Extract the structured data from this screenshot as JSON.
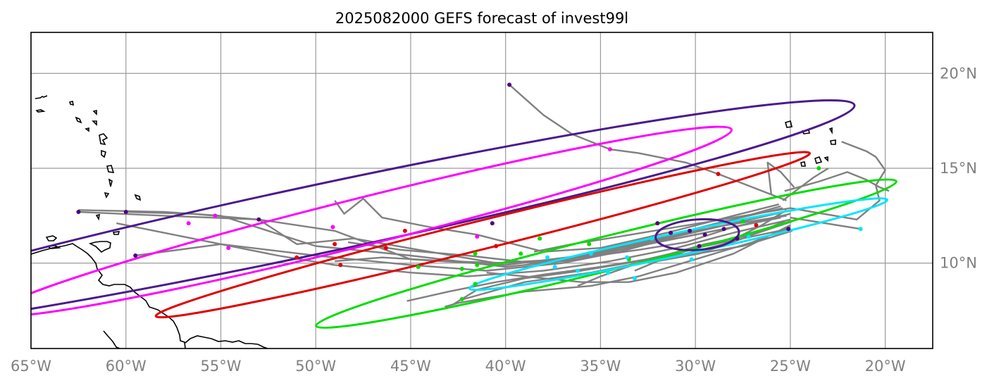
{
  "chart_data": {
    "type": "map",
    "title": "2025082000 GEFS forecast of invest99l",
    "projection": "PlateCarree",
    "lon_range": [
      -65,
      -17.5
    ],
    "lat_range": [
      5.5,
      22
    ],
    "xticks": [
      -65,
      -60,
      -55,
      -50,
      -45,
      -40,
      -35,
      -30,
      -25,
      -20
    ],
    "xtick_labels": [
      "65°W",
      "60°W",
      "55°W",
      "50°W",
      "45°W",
      "40°W",
      "35°W",
      "30°W",
      "25°W",
      "20°W"
    ],
    "yticks": [
      10,
      15,
      20
    ],
    "ytick_labels": [
      "10°N",
      "15°N",
      "20°N"
    ],
    "grid": true,
    "track_color": "#808080",
    "ensemble_tracks": [
      [
        [
          -25.5,
          13.0
        ],
        [
          -28,
          12.3
        ],
        [
          -32,
          11.2
        ],
        [
          -36,
          10.2
        ],
        [
          -40,
          9.8
        ],
        [
          -45,
          10.4
        ],
        [
          -50,
          10.9
        ],
        [
          -55,
          12.5
        ],
        [
          -58,
          12.7
        ],
        [
          -62.5,
          12.8
        ]
      ],
      [
        [
          -25.3,
          12.7
        ],
        [
          -28,
          12.1
        ],
        [
          -31,
          11.4
        ],
        [
          -34,
          10.6
        ],
        [
          -37,
          10.0
        ],
        [
          -41,
          9.6
        ],
        [
          -45,
          9.9
        ],
        [
          -50,
          10.4
        ],
        [
          -55,
          11.0
        ],
        [
          -59.5,
          10.4
        ]
      ],
      [
        [
          -25.4,
          12.9
        ],
        [
          -28.5,
          12.2
        ],
        [
          -32,
          11.3
        ],
        [
          -36,
          10.4
        ],
        [
          -40,
          9.9
        ],
        [
          -45,
          10.2
        ],
        [
          -49,
          11.7
        ],
        [
          -53,
          12.3
        ],
        [
          -56.5,
          12.6
        ],
        [
          -60,
          12.7
        ]
      ],
      [
        [
          -25.2,
          12.5
        ],
        [
          -29,
          11.9
        ],
        [
          -33,
          11.0
        ],
        [
          -37,
          10.2
        ],
        [
          -40.5,
          10.0
        ],
        [
          -44,
          10.6
        ],
        [
          -48,
          11.3
        ],
        [
          -51,
          11.0
        ],
        [
          -53,
          12.3
        ],
        [
          -58,
          12.5
        ],
        [
          -62.5,
          12.7
        ]
      ],
      [
        [
          -25.6,
          13.1
        ],
        [
          -28,
          12.5
        ],
        [
          -31.5,
          11.6
        ],
        [
          -35,
          10.8
        ],
        [
          -38,
          10.6
        ],
        [
          -41.5,
          11.5
        ],
        [
          -44,
          11.9
        ],
        [
          -46.5,
          12.4
        ],
        [
          -47.5,
          13.4
        ],
        [
          -48.5,
          12.6
        ],
        [
          -49,
          13.3
        ]
      ],
      [
        [
          -25.5,
          12.4
        ],
        [
          -29,
          11.7
        ],
        [
          -32.5,
          11.0
        ],
        [
          -36,
          10.3
        ],
        [
          -38.5,
          10.0
        ],
        [
          -42,
          10.4
        ],
        [
          -45.5,
          10.7
        ],
        [
          -48.3,
          11.1
        ]
      ],
      [
        [
          -25,
          12.3
        ],
        [
          -28,
          11.6
        ],
        [
          -31,
          10.8
        ],
        [
          -34.5,
          10.1
        ],
        [
          -38,
          9.6
        ],
        [
          -42,
          9.3
        ],
        [
          -45,
          9.5
        ],
        [
          -49,
          9.9
        ],
        [
          -52,
          10.4
        ],
        [
          -55,
          11.0
        ],
        [
          -58,
          11.6
        ],
        [
          -60.5,
          12.1
        ]
      ],
      [
        [
          -25,
          12.6
        ],
        [
          -27.5,
          12.0
        ],
        [
          -30,
          11.5
        ],
        [
          -33.5,
          10.8
        ],
        [
          -37,
          10.2
        ],
        [
          -40,
          10.0
        ],
        [
          -43,
          10.1
        ],
        [
          -46.5,
          10.3
        ],
        [
          -49,
          10.1
        ]
      ],
      [
        [
          -24.9,
          12.2
        ],
        [
          -27,
          11.5
        ],
        [
          -29.5,
          11.0
        ],
        [
          -32,
          10.3
        ],
        [
          -35,
          9.8
        ],
        [
          -38,
          9.4
        ],
        [
          -40.5,
          9.0
        ],
        [
          -43,
          8.5
        ],
        [
          -45.2,
          8.0
        ]
      ],
      [
        [
          -25.1,
          11.8
        ],
        [
          -27.5,
          11.3
        ],
        [
          -30,
          10.8
        ],
        [
          -33,
          10.1
        ],
        [
          -36,
          9.6
        ],
        [
          -39,
          9.2
        ],
        [
          -41.5,
          8.6
        ],
        [
          -42.8,
          7.8
        ]
      ],
      [
        [
          -25.2,
          12.1
        ],
        [
          -28.5,
          11.2
        ],
        [
          -32,
          10.2
        ],
        [
          -35.5,
          9.5
        ],
        [
          -39,
          9.0
        ],
        [
          -42.2,
          8.1
        ]
      ],
      [
        [
          -25.0,
          11.9
        ],
        [
          -27,
          11.1
        ],
        [
          -30,
          10.2
        ],
        [
          -33,
          9.3
        ],
        [
          -35.5,
          8.8
        ],
        [
          -39,
          8.5
        ],
        [
          -42.5,
          7.9
        ],
        [
          -43.2,
          7.7
        ]
      ],
      [
        [
          -25,
          12.0
        ],
        [
          -28,
          10.5
        ],
        [
          -31,
          9.5
        ],
        [
          -33.5,
          9.0
        ],
        [
          -36,
          9.0
        ],
        [
          -39,
          9.3
        ],
        [
          -41,
          9.5
        ]
      ],
      [
        [
          -24.9,
          11.7
        ],
        [
          -27.5,
          10.9
        ],
        [
          -30.5,
          10.4
        ],
        [
          -33,
          10.0
        ],
        [
          -35,
          9.3
        ],
        [
          -36.2,
          8.8
        ]
      ],
      [
        [
          -25.2,
          12.8
        ],
        [
          -26.5,
          12.0
        ],
        [
          -28.5,
          11.0
        ],
        [
          -30.5,
          10.5
        ],
        [
          -32.5,
          10.2
        ],
        [
          -34.8,
          9.8
        ]
      ],
      [
        [
          -25.3,
          12.2
        ],
        [
          -27.5,
          11.3
        ],
        [
          -29.8,
          10.5
        ],
        [
          -32,
          10.1
        ],
        [
          -33.2,
          9.6
        ]
      ],
      [
        [
          -25.5,
          12.5
        ],
        [
          -28,
          11.9
        ],
        [
          -30.5,
          11.1
        ],
        [
          -33,
          10.7
        ],
        [
          -35.2,
          10.4
        ],
        [
          -37.5,
          10.1
        ]
      ],
      [
        [
          -25,
          12.9
        ],
        [
          -28,
          12.4
        ],
        [
          -31,
          11.9
        ],
        [
          -34,
          11.4
        ],
        [
          -36.5,
          11.0
        ],
        [
          -38.5,
          10.6
        ]
      ],
      [
        [
          -25,
          12.4
        ],
        [
          -21.3,
          11.8
        ]
      ],
      [
        [
          -25.3,
          13.8
        ],
        [
          -23.5,
          14.3
        ],
        [
          -22,
          14.8
        ],
        [
          -21,
          14.4
        ],
        [
          -20.3,
          14.0
        ],
        [
          -19.8,
          13.8
        ]
      ],
      [
        [
          -25.4,
          13.3
        ],
        [
          -23.8,
          14.5
        ],
        [
          -23,
          15.0
        ]
      ],
      [
        [
          -25.0,
          12.9
        ],
        [
          -21.5,
          12.3
        ],
        [
          -20.3,
          13.3
        ],
        [
          -20.5,
          14.1
        ],
        [
          -20,
          14.9
        ],
        [
          -20.5,
          15.6
        ],
        [
          -21,
          15.9
        ],
        [
          -22.3,
          16.4
        ]
      ],
      [
        [
          -24.8,
          14.0
        ],
        [
          -25.5,
          14.8
        ],
        [
          -26.2,
          15.3
        ],
        [
          -26,
          13.6
        ]
      ],
      [
        [
          -25.2,
          13.3
        ],
        [
          -27,
          14.0
        ],
        [
          -28.8,
          14.7
        ],
        [
          -30.5,
          15.3
        ],
        [
          -33,
          15.8
        ],
        [
          -34.5,
          16.0
        ],
        [
          -36.5,
          16.8
        ],
        [
          -38,
          17.8
        ],
        [
          -39.8,
          19.4
        ]
      ]
    ],
    "track_markers": [
      {
        "color": "#e00000",
        "points": [
          [
            -28.8,
            14.7
          ],
          [
            -45.3,
            11.7
          ],
          [
            -46.3,
            10.8
          ],
          [
            -51,
            10.3
          ],
          [
            -48.7,
            9.9
          ],
          [
            -49,
            11.0
          ],
          [
            -40.5,
            10.9
          ],
          [
            -26.8,
            12.0
          ]
        ]
      },
      {
        "color": "#ff00ff",
        "points": [
          [
            -34.5,
            16.0
          ],
          [
            -49.1,
            11.9
          ],
          [
            -54.6,
            10.8
          ],
          [
            -55.3,
            12.5
          ],
          [
            -56.7,
            12.1
          ],
          [
            -41.5,
            11.4
          ]
        ]
      },
      {
        "color": "#00dd00",
        "points": [
          [
            -38.2,
            11.3
          ],
          [
            -39.2,
            10.5
          ],
          [
            -41.6,
            10.5
          ],
          [
            -41.5,
            9.9
          ],
          [
            -41.6,
            8.9
          ],
          [
            -42.3,
            9.7
          ],
          [
            -42.3,
            8.1
          ],
          [
            -44.6,
            9.8
          ],
          [
            -35.6,
            11.0
          ],
          [
            -33.5,
            10.2
          ],
          [
            -27.5,
            12.2
          ],
          [
            -23.5,
            15.0
          ]
        ]
      },
      {
        "color": "#00e5ff",
        "points": [
          [
            -21.3,
            11.8
          ],
          [
            -33.6,
            10.3
          ],
          [
            -35.5,
            10.5
          ],
          [
            -36.2,
            9.6
          ],
          [
            -37.8,
            10.3
          ],
          [
            -37.4,
            9.8
          ],
          [
            -34.6,
            9.5
          ],
          [
            -33.2,
            9.2
          ],
          [
            -30.2,
            10.2
          ],
          [
            -32.3,
            11.3
          ],
          [
            -27.2,
            11.4
          ]
        ]
      },
      {
        "color": "#4b0082",
        "points": [
          [
            -39.8,
            19.4
          ],
          [
            -62.5,
            12.7
          ],
          [
            -60,
            12.7
          ],
          [
            -59.5,
            10.4
          ],
          [
            -53,
            12.3
          ],
          [
            -40.7,
            12.1
          ],
          [
            -25.1,
            11.8
          ],
          [
            -29.5,
            11.5
          ],
          [
            -30.3,
            11.7
          ],
          [
            -31.3,
            11.6
          ],
          [
            -32,
            12.1
          ],
          [
            -28.5,
            11.8
          ],
          [
            -27.8,
            11.3
          ],
          [
            -29.8,
            10.9
          ]
        ]
      }
    ],
    "ellipses": [
      {
        "color": "#4b1a8c",
        "center": [
          -49.5,
          12.4
        ],
        "width_deg": 57,
        "height_deg": 3.6,
        "angle_deg": 12
      },
      {
        "color": "#ff00ff",
        "center": [
          -47.5,
          12.2
        ],
        "width_deg": 40,
        "height_deg": 2.5,
        "angle_deg": 14
      },
      {
        "color": "#e00000",
        "center": [
          -41.2,
          11.5
        ],
        "width_deg": 35.5,
        "height_deg": 1.5,
        "angle_deg": 14
      },
      {
        "color": "#00dd00",
        "center": [
          -34.7,
          10.5
        ],
        "width_deg": 31.5,
        "height_deg": 1.8,
        "angle_deg": 14
      },
      {
        "color": "#00e5ff",
        "center": [
          -30.9,
          11.0
        ],
        "width_deg": 22.5,
        "height_deg": 1.2,
        "angle_deg": 12
      },
      {
        "color": "#4b1a8c",
        "center": [
          -29.9,
          11.5
        ],
        "width_deg": 4.4,
        "height_deg": 1.6,
        "angle_deg": 4
      }
    ],
    "coastline_color": "#000000"
  }
}
